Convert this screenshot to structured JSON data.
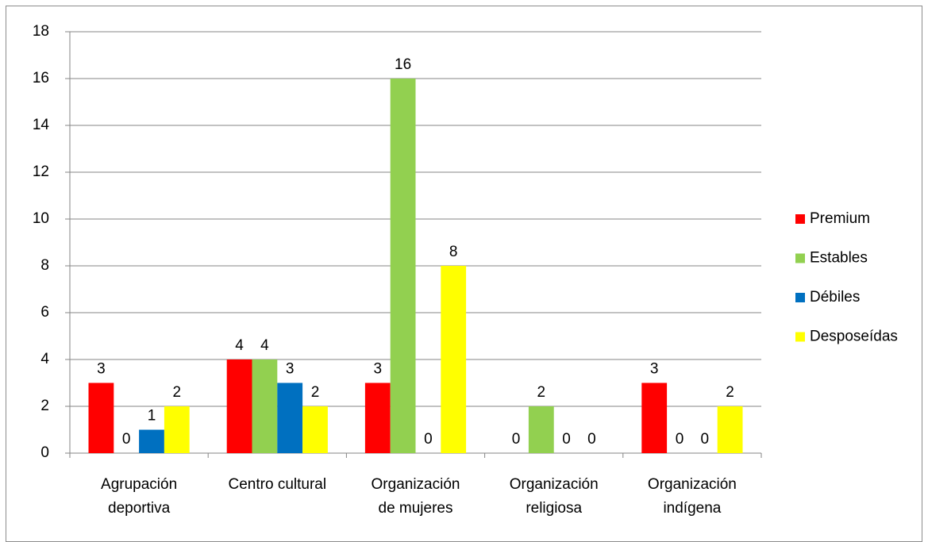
{
  "chart_data": {
    "type": "bar",
    "categories": [
      [
        "Agrupación",
        "deportiva"
      ],
      [
        "Centro cultural"
      ],
      [
        "Organización",
        "de mujeres"
      ],
      [
        "Organización",
        "religiosa"
      ],
      [
        "Organización",
        "indígena"
      ]
    ],
    "series": [
      {
        "name": "Premium",
        "color": "#ff0000",
        "values": [
          3,
          4,
          3,
          0,
          3
        ]
      },
      {
        "name": "Estables",
        "color": "#92d050",
        "values": [
          0,
          4,
          16,
          2,
          0
        ]
      },
      {
        "name": "Débiles",
        "color": "#0070c0",
        "values": [
          1,
          3,
          0,
          0,
          0
        ]
      },
      {
        "name": "Desposeídas",
        "color": "#ffff00",
        "values": [
          2,
          2,
          8,
          0,
          2
        ]
      }
    ],
    "ylim": [
      0,
      18
    ],
    "yticks": [
      0,
      2,
      4,
      6,
      8,
      10,
      12,
      14,
      16,
      18
    ],
    "grid": true,
    "legend": "right"
  }
}
